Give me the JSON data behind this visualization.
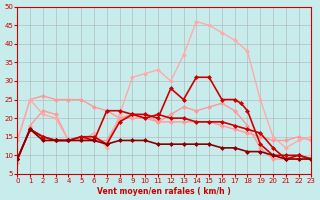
{
  "xlabel": "Vent moyen/en rafales ( km/h )",
  "ylabel": "",
  "xlim": [
    0,
    23
  ],
  "ylim": [
    5,
    50
  ],
  "yticks": [
    5,
    10,
    15,
    20,
    25,
    30,
    35,
    40,
    45,
    50
  ],
  "xticks": [
    0,
    1,
    2,
    3,
    4,
    5,
    6,
    7,
    8,
    9,
    10,
    11,
    12,
    13,
    14,
    15,
    16,
    17,
    18,
    19,
    20,
    21,
    22,
    23
  ],
  "bg_color": "#c8ecec",
  "grid_color": "#aaaaaa",
  "series": [
    {
      "x": [
        0,
        1,
        2,
        3,
        4,
        5,
        6,
        7,
        8,
        9,
        10,
        11,
        12,
        13,
        14,
        15,
        16,
        17,
        18,
        19,
        20,
        21,
        22,
        23
      ],
      "y": [
        14,
        25,
        26,
        25,
        25,
        25,
        23,
        22,
        20,
        20,
        20,
        19,
        19,
        19,
        19,
        19,
        18,
        17,
        16,
        15,
        14,
        14,
        15,
        14
      ],
      "color": "#ff9999",
      "marker": "D",
      "markersize": 2,
      "linewidth": 1.0,
      "zorder": 2
    },
    {
      "x": [
        0,
        1,
        2,
        3,
        4,
        5,
        6,
        7,
        8,
        9,
        10,
        11,
        12,
        13,
        14,
        15,
        16,
        17,
        18,
        19,
        20,
        21,
        22,
        23
      ],
      "y": [
        8,
        18,
        22,
        21,
        14,
        14,
        14,
        14,
        20,
        21,
        21,
        19,
        21,
        23,
        22,
        23,
        24,
        22,
        18,
        12,
        9,
        9,
        9,
        9
      ],
      "color": "#ff9999",
      "marker": "D",
      "markersize": 2,
      "linewidth": 1.0,
      "zorder": 2
    },
    {
      "x": [
        0,
        1,
        2,
        3,
        4,
        5,
        6,
        7,
        8,
        9,
        10,
        11,
        12,
        13,
        14,
        15,
        16,
        17,
        18,
        19,
        20,
        21,
        22,
        23
      ],
      "y": [
        14,
        25,
        21,
        20,
        14,
        14,
        16,
        12,
        21,
        31,
        32,
        33,
        30,
        37,
        46,
        45,
        43,
        41,
        38,
        25,
        15,
        12,
        14,
        15
      ],
      "color": "#ffaaaa",
      "marker": "D",
      "markersize": 2,
      "linewidth": 1.0,
      "zorder": 2
    },
    {
      "x": [
        0,
        1,
        2,
        3,
        4,
        5,
        6,
        7,
        8,
        9,
        10,
        11,
        12,
        13,
        14,
        15,
        16,
        17,
        18,
        19,
        20,
        21,
        22,
        23
      ],
      "y": [
        9,
        17,
        15,
        14,
        14,
        15,
        14,
        22,
        22,
        21,
        20,
        21,
        20,
        20,
        19,
        19,
        19,
        18,
        17,
        16,
        12,
        9,
        10,
        9
      ],
      "color": "#cc0000",
      "marker": "D",
      "markersize": 2,
      "linewidth": 1.2,
      "zorder": 3
    },
    {
      "x": [
        0,
        1,
        2,
        3,
        4,
        5,
        6,
        7,
        8,
        9,
        10,
        11,
        12,
        13,
        14,
        15,
        16,
        17,
        17.5,
        18,
        19,
        20,
        21,
        22,
        23
      ],
      "y": [
        9,
        17,
        15,
        14,
        14,
        15,
        15,
        13,
        19,
        21,
        21,
        20,
        28,
        25,
        31,
        31,
        25,
        25,
        24,
        22,
        13,
        10,
        10,
        10,
        9
      ],
      "color": "#cc0000",
      "marker": "D",
      "markersize": 2,
      "linewidth": 1.2,
      "zorder": 3
    },
    {
      "x": [
        0,
        1,
        2,
        3,
        4,
        5,
        6,
        7,
        8,
        9,
        10,
        11,
        12,
        13,
        14,
        15,
        16,
        17,
        18,
        19,
        20,
        21,
        22,
        23
      ],
      "y": [
        9,
        17,
        14,
        14,
        14,
        14,
        14,
        13,
        14,
        14,
        14,
        13,
        13,
        13,
        13,
        13,
        12,
        12,
        11,
        11,
        10,
        9,
        9,
        9
      ],
      "color": "#880000",
      "marker": "D",
      "markersize": 2,
      "linewidth": 1.2,
      "zorder": 3
    }
  ]
}
